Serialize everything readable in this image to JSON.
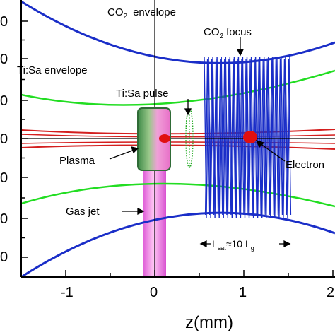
{
  "labels": {
    "co2_envelope": "CO",
    "co2_envelope_sub": "2",
    "co2_envelope_rest": "envelope",
    "co2_focus": "CO",
    "co2_focus_sub": "2",
    "co2_focus_rest": "focus",
    "tisa_envelope": "Ti:Sa envelope",
    "tisa_pulse": "Ti:Sa pulse",
    "plasma": "Plasma",
    "gas_jet": "Gas jet",
    "electron": "Electron",
    "lsat_main": "L",
    "lsat_sub": "sat",
    "lsat_approx": "≈10 L",
    "lsat_sub2": "g",
    "xlabel": "z(mm)"
  },
  "axis": {
    "x_ticks": [
      "-1",
      "0",
      "1",
      "2"
    ],
    "y_ticks_partial": [
      "0",
      "0",
      "0",
      "0",
      "0",
      "0",
      "0"
    ]
  },
  "colors": {
    "co2": "#1a2ec8",
    "tisa_env": "#22dd22",
    "tisa_beam": "#d41e1e",
    "gas_jet": "#e878e0",
    "plasma_light": "#f080d0",
    "plasma_dark": "#3a9a4a",
    "pulse": "#22aa22",
    "electron": "#e01010"
  }
}
